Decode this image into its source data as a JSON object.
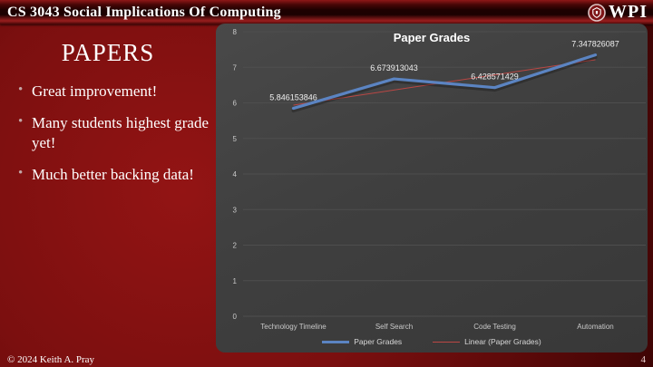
{
  "header": {
    "course_title": "CS 3043 Social Implications Of Computing",
    "logo_text": "WPI"
  },
  "slide": {
    "title": "PAPERS",
    "bullets": [
      "Great improvement!",
      "Many students highest grade yet!",
      "Much better backing data!"
    ]
  },
  "footer": {
    "copyright": "© 2024 Keith A. Pray",
    "page_number": "4"
  },
  "colors": {
    "series_blue": "#5B84C2",
    "trend_red": "#BB4744",
    "panel_gray": "#3F3F3F",
    "grid_line": "#4E4E4E",
    "axis_text": "#C9C9C9",
    "data_label_text": "#EFEFEF",
    "slide_red": "#8E1212"
  },
  "chart_data": {
    "type": "line",
    "title": "Paper Grades",
    "categories": [
      "Technology Timeline",
      "Self Search",
      "Code Testing",
      "Automation"
    ],
    "series": [
      {
        "name": "Paper Grades",
        "values": [
          5.846153846,
          6.673913043,
          6.428571429,
          7.347826087
        ],
        "color": "#5B84C2"
      }
    ],
    "trendline": {
      "name": "Linear (Paper Grades)",
      "color": "#BB4744"
    },
    "data_labels": [
      "5.846153846",
      "6.673913043",
      "6.428571429",
      "7.347826087"
    ],
    "xlabel": "",
    "ylabel": "",
    "ylim": [
      0,
      8
    ],
    "ytick_step": 1,
    "grid": true,
    "legend_position": "bottom"
  }
}
